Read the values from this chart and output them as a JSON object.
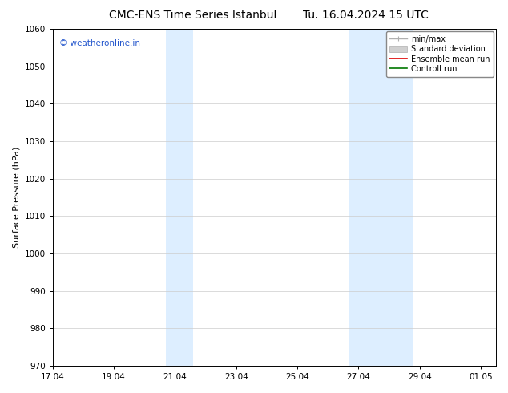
{
  "title_left": "CMC-ENS Time Series Istanbul",
  "title_right": "Tu. 16.04.2024 15 UTC",
  "ylabel": "Surface Pressure (hPa)",
  "ylim": [
    970,
    1060
  ],
  "yticks": [
    970,
    980,
    990,
    1000,
    1010,
    1020,
    1030,
    1040,
    1050,
    1060
  ],
  "xtick_labels": [
    "17.04",
    "19.04",
    "21.04",
    "23.04",
    "25.04",
    "27.04",
    "29.04",
    "01.05"
  ],
  "xtick_positions": [
    0,
    2,
    4,
    6,
    8,
    10,
    12,
    14
  ],
  "shaded_regions": [
    {
      "xmin": 3.7,
      "xmax": 4.6
    },
    {
      "xmin": 9.7,
      "xmax": 11.8
    }
  ],
  "shaded_color": "#ddeeff",
  "watermark_text": "© weatheronline.in",
  "watermark_color": "#2255cc",
  "bg_color": "#ffffff",
  "grid_color": "#cccccc",
  "title_fontsize": 10,
  "axis_fontsize": 8,
  "tick_fontsize": 7.5,
  "watermark_fontsize": 7.5,
  "legend_fontsize": 7,
  "xmin": 0,
  "xmax": 14.5
}
